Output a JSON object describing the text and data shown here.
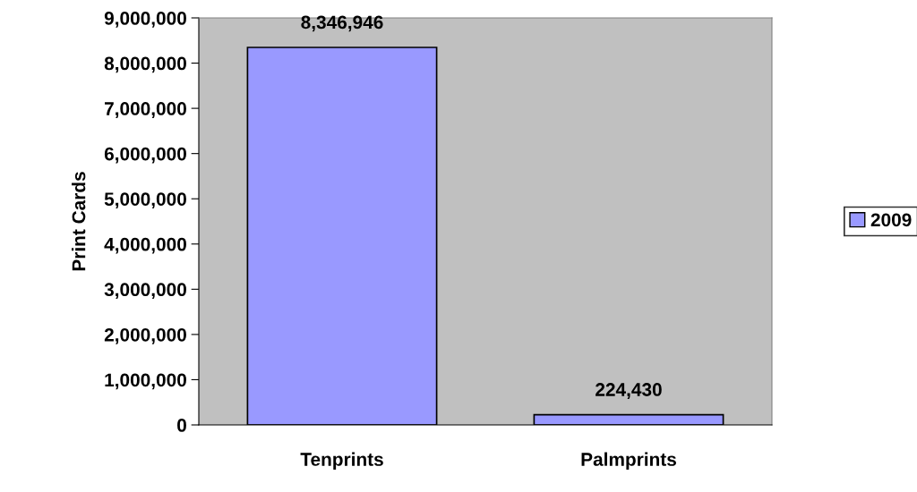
{
  "chart_data": {
    "type": "bar",
    "ylabel": "Print Cards",
    "categories": [
      "Tenprints",
      "Palmprints"
    ],
    "series": [
      {
        "name": "2009",
        "color": "#9999ff",
        "values": [
          8346946,
          224430
        ],
        "value_labels": [
          "8,346,946",
          "224,430"
        ]
      }
    ],
    "ylim": [
      0,
      9000000
    ],
    "yticks": [
      {
        "value": 0,
        "label": "0"
      },
      {
        "value": 1000000,
        "label": "1,000,000"
      },
      {
        "value": 2000000,
        "label": "2,000,000"
      },
      {
        "value": 3000000,
        "label": "3,000,000"
      },
      {
        "value": 4000000,
        "label": "4,000,000"
      },
      {
        "value": 5000000,
        "label": "5,000,000"
      },
      {
        "value": 6000000,
        "label": "6,000,000"
      },
      {
        "value": 7000000,
        "label": "7,000,000"
      },
      {
        "value": 8000000,
        "label": "8,000,000"
      },
      {
        "value": 9000000,
        "label": "9,000,000"
      }
    ],
    "grid": false,
    "legend": "right"
  }
}
